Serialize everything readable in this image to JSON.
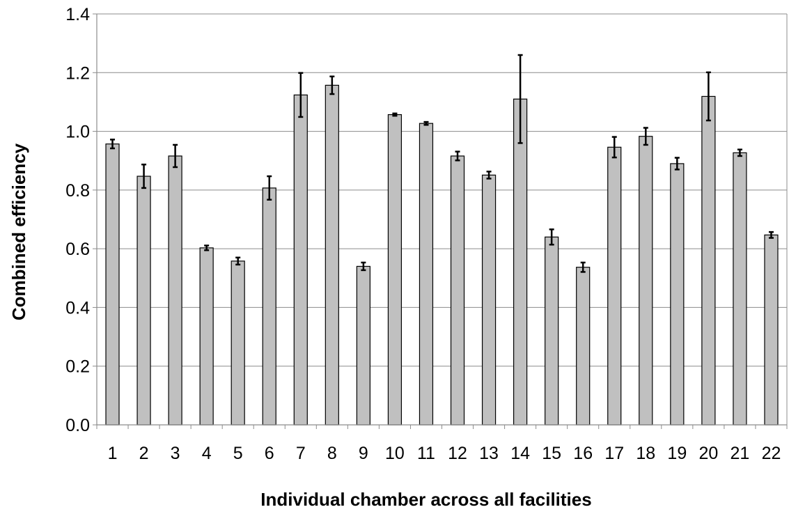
{
  "chart_data": {
    "type": "bar",
    "title": "",
    "xlabel": "Individual chamber across all facilities",
    "ylabel": "Combined efficiency",
    "ylim": [
      0,
      1.4
    ],
    "yticks": [
      "0.0",
      "0.2",
      "0.4",
      "0.6",
      "0.8",
      "1.0",
      "1.2",
      "1.4"
    ],
    "grid": "horizontal",
    "bar_color": "#c0c0c0",
    "categories": [
      "1",
      "2",
      "3",
      "4",
      "5",
      "6",
      "7",
      "8",
      "9",
      "10",
      "11",
      "12",
      "13",
      "14",
      "15",
      "16",
      "17",
      "18",
      "19",
      "20",
      "21",
      "22"
    ],
    "values": [
      0.957,
      0.847,
      0.916,
      0.603,
      0.558,
      0.807,
      1.124,
      1.157,
      0.54,
      1.057,
      1.027,
      0.916,
      0.851,
      1.11,
      0.64,
      0.537,
      0.946,
      0.983,
      0.89,
      1.119,
      0.927,
      0.647
    ],
    "errors": [
      0.015,
      0.04,
      0.038,
      0.008,
      0.012,
      0.04,
      0.075,
      0.03,
      0.013,
      0.004,
      0.005,
      0.015,
      0.012,
      0.15,
      0.026,
      0.016,
      0.035,
      0.029,
      0.02,
      0.082,
      0.011,
      0.01
    ]
  }
}
